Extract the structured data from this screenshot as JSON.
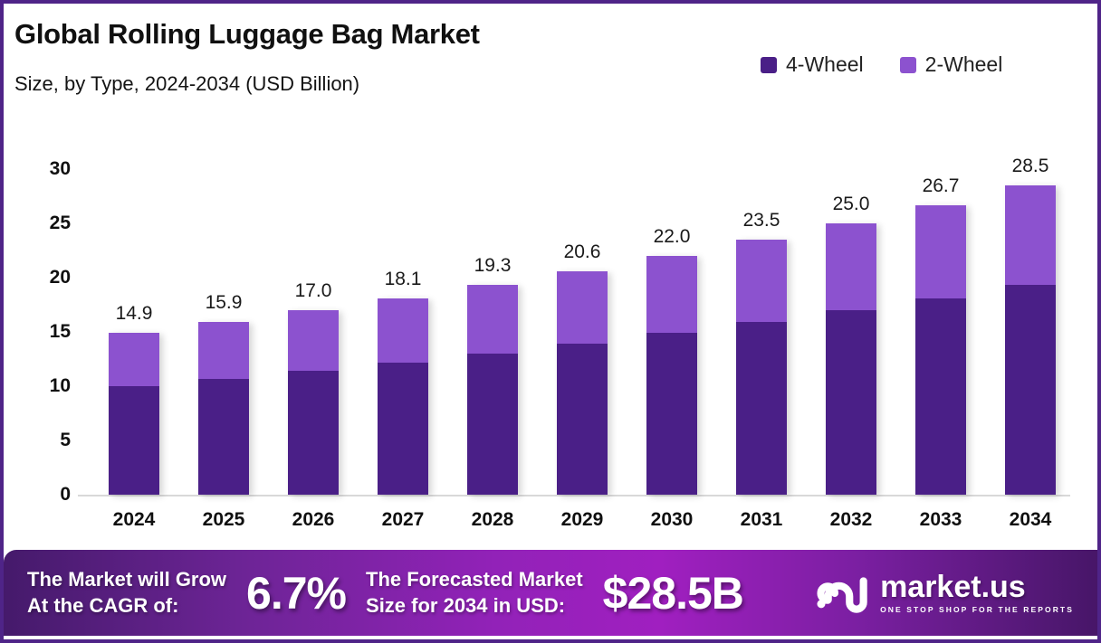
{
  "chart_data": {
    "type": "bar",
    "stacked": true,
    "title": "Global Rolling Luggage Bag Market",
    "subtitle": "Size, by Type, 2024-2034 (USD Billion)",
    "categories": [
      "2024",
      "2025",
      "2026",
      "2027",
      "2028",
      "2029",
      "2030",
      "2031",
      "2032",
      "2033",
      "2034"
    ],
    "series": [
      {
        "name": "4-Wheel",
        "color": "#4a1f87",
        "values": [
          10.0,
          10.7,
          11.4,
          12.2,
          13.0,
          13.9,
          14.9,
          15.9,
          17.0,
          18.1,
          19.3
        ]
      },
      {
        "name": "2-Wheel",
        "color": "#8c52cf",
        "values": [
          4.9,
          5.2,
          5.6,
          5.9,
          6.3,
          6.7,
          7.1,
          7.6,
          8.0,
          8.6,
          9.2
        ]
      }
    ],
    "totals": [
      14.9,
      15.9,
      17.0,
      18.1,
      19.3,
      20.6,
      22.0,
      23.5,
      25.0,
      26.7,
      28.5
    ],
    "total_labels": [
      "14.9",
      "15.9",
      "17.0",
      "18.1",
      "19.3",
      "20.6",
      "22.0",
      "23.5",
      "25.0",
      "26.7",
      "28.5"
    ],
    "xlabel": "",
    "ylabel": "",
    "ylim": [
      0,
      30
    ],
    "yticks": [
      0,
      5,
      10,
      15,
      20,
      25,
      30
    ],
    "grid": false,
    "legend_position": "top-right"
  },
  "footer": {
    "cagr_label_line1": "The Market will Grow",
    "cagr_label_line2": "At the CAGR of:",
    "cagr_value": "6.7%",
    "forecast_label_line1": "The Forecasted Market",
    "forecast_label_line2": "Size for 2034 in USD:",
    "forecast_value": "$28.5B",
    "brand_name": "market.us",
    "brand_tagline": "ONE STOP SHOP FOR THE REPORTS"
  }
}
